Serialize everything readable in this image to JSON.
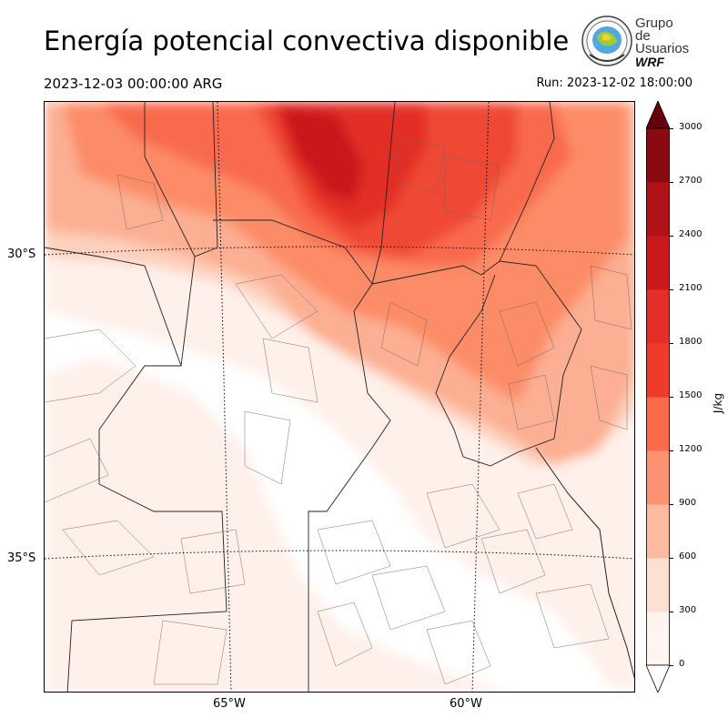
{
  "title": "Energía potencial convectiva disponible",
  "valid_time": "2023-12-03 00:00:00 ARG",
  "run_time": "Run: 2023-12-02 18:00:00",
  "logo": {
    "line1": "Grupo de",
    "line2": "Usuarios",
    "line3": "WRF",
    "icon": "globe-seal-icon"
  },
  "map": {
    "lat_labels": [
      "30°S",
      "35°S"
    ],
    "lon_labels": [
      "65°W",
      "60°W"
    ]
  },
  "colorbar": {
    "unit": "J/kg",
    "ticks": [
      "0",
      "300",
      "600",
      "900",
      "1200",
      "1500",
      "1800",
      "2100",
      "2400",
      "2700",
      "3000"
    ],
    "colors": [
      "#fff5f0",
      "#fee0d2",
      "#fcbba1",
      "#fc9272",
      "#fb6a4a",
      "#ef3b2c",
      "#e32f27",
      "#cb181d",
      "#b11218",
      "#8b0a12",
      "#67000d"
    ]
  }
}
